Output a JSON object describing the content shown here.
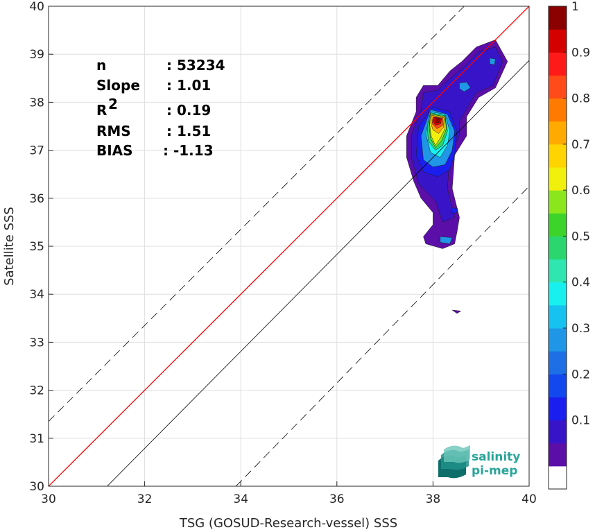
{
  "chart_data": {
    "type": "heatmap",
    "xlabel": "TSG (GOSUD-Research-vessel) SSS",
    "ylabel": "Satellite SSS",
    "xlim": [
      30,
      40
    ],
    "ylim": [
      30,
      40
    ],
    "xticks": [
      "30",
      "32",
      "34",
      "36",
      "38",
      "40"
    ],
    "yticks": [
      "30",
      "31",
      "32",
      "33",
      "34",
      "35",
      "36",
      "37",
      "38",
      "39",
      "40"
    ],
    "grid": true,
    "colorbar": {
      "ticks": [
        "0.1",
        "0.2",
        "0.3",
        "0.4",
        "0.5",
        "0.6",
        "0.7",
        "0.8",
        "0.9",
        "1"
      ],
      "levels": [
        "#ffffff",
        "#5b0fa8",
        "#3814c9",
        "#1a1ff0",
        "#1248ee",
        "#1e6fe6",
        "#1f96e6",
        "#16c2f0",
        "#18f0f0",
        "#2fe6b0",
        "#2bd66e",
        "#3cd42a",
        "#8ce61c",
        "#f0f00c",
        "#ffd400",
        "#ffaa00",
        "#ff7a00",
        "#ff4a1a",
        "#ff1a1a",
        "#d40000",
        "#8b0000"
      ]
    },
    "reference_lines": [
      {
        "kind": "identity",
        "color": "#ff0000",
        "style": "solid",
        "points": [
          [
            30,
            30
          ],
          [
            40,
            40
          ]
        ]
      },
      {
        "kind": "regression",
        "color": "#000000",
        "style": "solid",
        "points": [
          [
            31.22,
            30
          ],
          [
            40,
            38.87
          ]
        ]
      },
      {
        "kind": "upper-bound",
        "color": "#000000",
        "style": "dashed",
        "points": [
          [
            30,
            31.35
          ],
          [
            38.65,
            40
          ]
        ]
      },
      {
        "kind": "lower-bound",
        "color": "#000000",
        "style": "dashed",
        "points": [
          [
            33.9,
            30
          ],
          [
            40,
            36.25
          ]
        ]
      }
    ],
    "density_contours": [
      {
        "level": 0.05,
        "color": "#5b0fa8",
        "points": [
          [
            38.9,
            39.15
          ],
          [
            39.3,
            39.3
          ],
          [
            39.55,
            38.85
          ],
          [
            39.3,
            38.3
          ],
          [
            38.95,
            38.1
          ],
          [
            38.7,
            37.7
          ],
          [
            38.7,
            37.3
          ],
          [
            38.45,
            36.9
          ],
          [
            38.4,
            36.2
          ],
          [
            38.55,
            35.6
          ],
          [
            38.5,
            35.3
          ],
          [
            38.45,
            35.05
          ],
          [
            38.2,
            34.95
          ],
          [
            37.85,
            35.05
          ],
          [
            37.8,
            35.2
          ],
          [
            38.0,
            35.45
          ],
          [
            38.0,
            35.7
          ],
          [
            37.75,
            36.0
          ],
          [
            37.6,
            36.35
          ],
          [
            37.45,
            36.85
          ],
          [
            37.45,
            37.3
          ],
          [
            37.65,
            37.8
          ],
          [
            37.65,
            38.1
          ],
          [
            37.8,
            38.35
          ],
          [
            38.1,
            38.35
          ],
          [
            38.35,
            38.65
          ],
          [
            38.6,
            38.85
          ]
        ]
      },
      {
        "level": 0.1,
        "color": "#3814c9",
        "points": [
          [
            38.95,
            39.05
          ],
          [
            39.3,
            39.15
          ],
          [
            39.45,
            38.85
          ],
          [
            39.25,
            38.35
          ],
          [
            38.9,
            38.2
          ],
          [
            38.55,
            37.6
          ],
          [
            38.55,
            37.3
          ],
          [
            38.35,
            36.9
          ],
          [
            38.3,
            36.2
          ],
          [
            38.45,
            35.6
          ],
          [
            38.2,
            35.5
          ],
          [
            38.05,
            35.95
          ],
          [
            37.7,
            36.3
          ],
          [
            37.55,
            36.85
          ],
          [
            37.55,
            37.3
          ],
          [
            37.75,
            37.85
          ],
          [
            37.8,
            38.2
          ],
          [
            38.1,
            38.25
          ],
          [
            38.3,
            38.45
          ],
          [
            38.6,
            38.7
          ]
        ]
      },
      {
        "level": 0.2,
        "color": "#1a1ff0",
        "points": [
          [
            38.0,
            37.9
          ],
          [
            38.35,
            37.8
          ],
          [
            38.5,
            37.4
          ],
          [
            38.45,
            36.9
          ],
          [
            38.35,
            36.6
          ],
          [
            38.1,
            36.45
          ],
          [
            37.8,
            36.55
          ],
          [
            37.65,
            36.9
          ],
          [
            37.7,
            37.5
          ]
        ]
      },
      {
        "level": 0.3,
        "color": "#1f96e6",
        "points": [
          [
            37.95,
            37.85
          ],
          [
            38.3,
            37.75
          ],
          [
            38.45,
            37.4
          ],
          [
            38.4,
            37.0
          ],
          [
            38.25,
            36.7
          ],
          [
            38.0,
            36.65
          ],
          [
            37.8,
            36.8
          ],
          [
            37.75,
            37.3
          ]
        ]
      },
      {
        "level": 0.4,
        "color": "#18f0f0",
        "points": [
          [
            37.95,
            37.8
          ],
          [
            38.25,
            37.75
          ],
          [
            38.35,
            37.4
          ],
          [
            38.3,
            37.1
          ],
          [
            38.15,
            36.85
          ],
          [
            37.95,
            36.95
          ],
          [
            37.85,
            37.35
          ]
        ]
      },
      {
        "level": 0.5,
        "color": "#2bd66e",
        "points": [
          [
            37.95,
            37.78
          ],
          [
            38.25,
            37.72
          ],
          [
            38.3,
            37.4
          ],
          [
            38.2,
            37.1
          ],
          [
            38.05,
            37.0
          ],
          [
            37.9,
            37.2
          ],
          [
            37.88,
            37.5
          ]
        ]
      },
      {
        "level": 0.6,
        "color": "#8ce61c",
        "points": [
          [
            37.95,
            37.75
          ],
          [
            38.25,
            37.7
          ],
          [
            38.28,
            37.45
          ],
          [
            38.18,
            37.2
          ],
          [
            38.05,
            37.05
          ],
          [
            37.95,
            37.25
          ],
          [
            37.92,
            37.5
          ]
        ]
      },
      {
        "level": 0.7,
        "color": "#f0f00c",
        "points": [
          [
            37.95,
            37.75
          ],
          [
            38.25,
            37.7
          ],
          [
            38.25,
            37.45
          ],
          [
            38.15,
            37.25
          ],
          [
            38.05,
            37.1
          ],
          [
            37.96,
            37.3
          ],
          [
            37.93,
            37.55
          ]
        ]
      },
      {
        "level": 0.75,
        "color": "#ffaa00",
        "points": [
          [
            37.97,
            37.73
          ],
          [
            38.23,
            37.68
          ],
          [
            38.22,
            37.48
          ],
          [
            38.12,
            37.35
          ],
          [
            38.0,
            37.42
          ],
          [
            37.95,
            37.58
          ]
        ]
      },
      {
        "level": 0.85,
        "color": "#ff4a1a",
        "points": [
          [
            38.0,
            37.7
          ],
          [
            38.2,
            37.67
          ],
          [
            38.2,
            37.52
          ],
          [
            38.08,
            37.45
          ],
          [
            37.98,
            37.55
          ]
        ]
      },
      {
        "level": 0.92,
        "color": "#d40000",
        "points": [
          [
            38.02,
            37.69
          ],
          [
            38.18,
            37.66
          ],
          [
            38.16,
            37.55
          ],
          [
            38.05,
            37.52
          ],
          [
            38.0,
            37.6
          ]
        ]
      },
      {
        "level": 1.0,
        "color": "#8b0000",
        "points": [
          [
            38.05,
            37.67
          ],
          [
            38.15,
            37.65
          ],
          [
            38.12,
            37.58
          ],
          [
            38.05,
            37.58
          ]
        ]
      },
      {
        "level": 0.3,
        "color": "#1f96e6",
        "points": [
          [
            38.55,
            38.4
          ],
          [
            38.7,
            38.42
          ],
          [
            38.78,
            38.3
          ],
          [
            38.65,
            38.22
          ],
          [
            38.55,
            38.28
          ]
        ]
      },
      {
        "level": 0.3,
        "color": "#1f96e6",
        "points": [
          [
            39.18,
            38.92
          ],
          [
            39.3,
            38.9
          ],
          [
            39.28,
            38.78
          ],
          [
            39.18,
            38.8
          ]
        ]
      },
      {
        "level": 0.3,
        "color": "#1f96e6",
        "points": [
          [
            38.15,
            35.2
          ],
          [
            38.4,
            35.18
          ],
          [
            38.35,
            35.05
          ],
          [
            38.15,
            35.08
          ]
        ]
      },
      {
        "level": 0.2,
        "color": "#1a1ff0",
        "points": [
          [
            38.4,
            35.8
          ],
          [
            38.52,
            35.78
          ],
          [
            38.48,
            35.68
          ],
          [
            38.38,
            35.7
          ]
        ]
      },
      {
        "level": 0.05,
        "color": "#5b0fa8",
        "points": [
          [
            38.4,
            33.67
          ],
          [
            38.58,
            33.65
          ],
          [
            38.5,
            33.6
          ]
        ]
      }
    ],
    "stats": [
      {
        "label": "n",
        "value": ": 53234"
      },
      {
        "label": "Slope",
        "value": ": 1.01"
      },
      {
        "label": "R",
        "sup": "2",
        "value": ": 0.19"
      },
      {
        "label": "RMS",
        "value": ": 1.51"
      },
      {
        "label": "BIAS",
        "value": ": -1.13"
      }
    ]
  },
  "logo": {
    "line1": "salinity",
    "line2": "pi-mep"
  }
}
